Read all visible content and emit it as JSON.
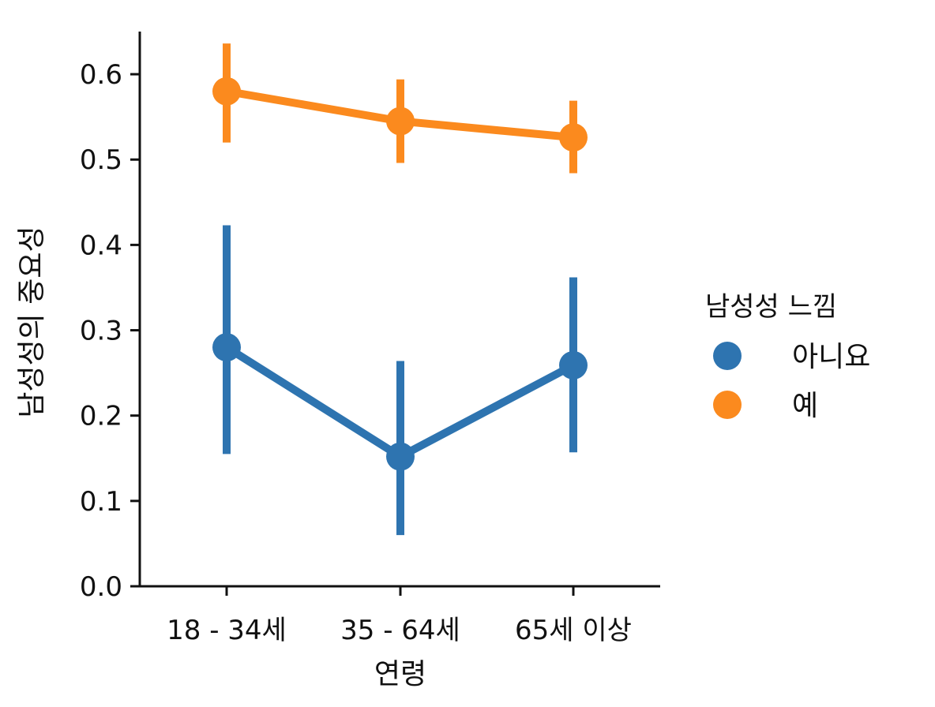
{
  "chart_data": {
    "type": "line",
    "subtype": "pointplot-with-error-bars",
    "categories": [
      "18 - 34세",
      "35 - 64세",
      "65세 이상"
    ],
    "xlabel": "연령",
    "ylabel": "남성성의 중요성",
    "ylim": [
      0.0,
      0.65
    ],
    "yticks": [
      0.0,
      0.1,
      0.2,
      0.3,
      0.4,
      0.5,
      0.6
    ],
    "ytick_labels": [
      "0.0",
      "0.1",
      "0.2",
      "0.3",
      "0.4",
      "0.5",
      "0.6"
    ],
    "grid": false,
    "legend": {
      "title": "남성성 느낌",
      "placement": "right"
    },
    "series": [
      {
        "name": "아니요",
        "color": "#2e74b0",
        "values": [
          0.28,
          0.152,
          0.259
        ],
        "ci_low": [
          0.155,
          0.06,
          0.157
        ],
        "ci_high": [
          0.423,
          0.264,
          0.362
        ]
      },
      {
        "name": "예",
        "color": "#fb8a1e",
        "values": [
          0.58,
          0.545,
          0.526
        ],
        "ci_low": [
          0.52,
          0.496,
          0.484
        ],
        "ci_high": [
          0.636,
          0.594,
          0.569
        ]
      }
    ]
  }
}
